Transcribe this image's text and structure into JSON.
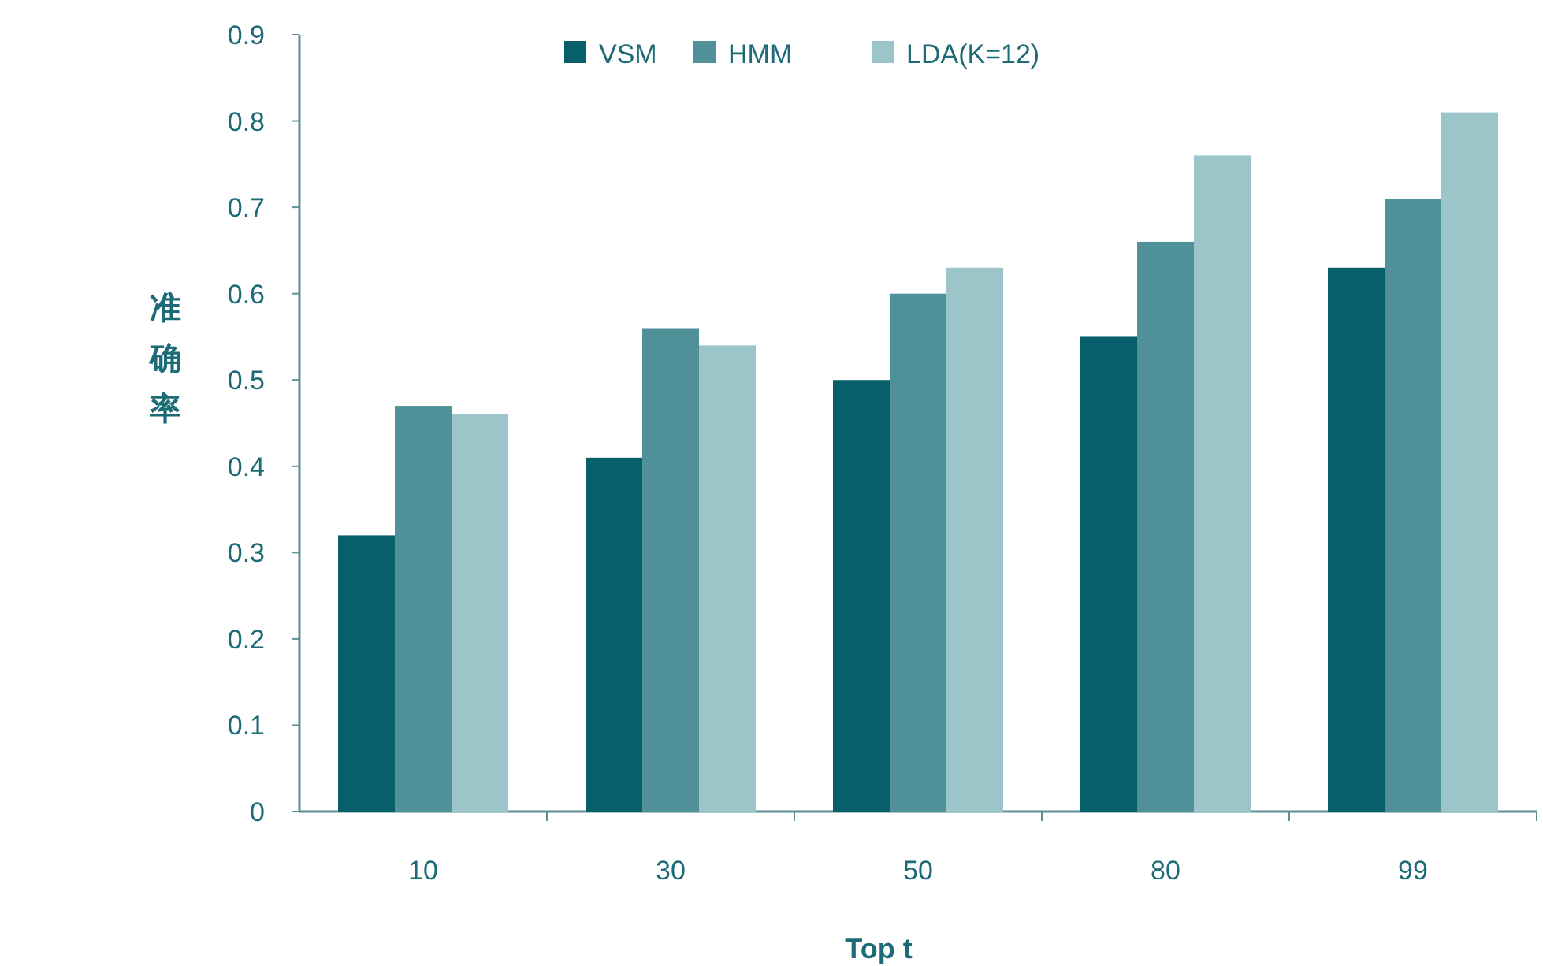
{
  "chart_data": {
    "type": "bar",
    "xlabel": "Top t",
    "ylabel": "准确率",
    "categories": [
      "10",
      "30",
      "50",
      "80",
      "99"
    ],
    "series": [
      {
        "name": "VSM",
        "color": "#065f6b",
        "values": [
          0.32,
          0.41,
          0.5,
          0.55,
          0.63
        ]
      },
      {
        "name": "HMM",
        "color": "#4f9099",
        "values": [
          0.47,
          0.56,
          0.6,
          0.66,
          0.71
        ]
      },
      {
        "name": "LDA(K=12)",
        "color": "#9cc5ca",
        "values": [
          0.46,
          0.54,
          0.63,
          0.76,
          0.81
        ]
      }
    ],
    "ylim": [
      0,
      0.9
    ],
    "yticks": [
      0,
      0.1,
      0.2,
      0.3,
      0.4,
      0.5,
      0.6,
      0.7,
      0.8,
      0.9
    ],
    "grid": false,
    "legend": "top"
  }
}
